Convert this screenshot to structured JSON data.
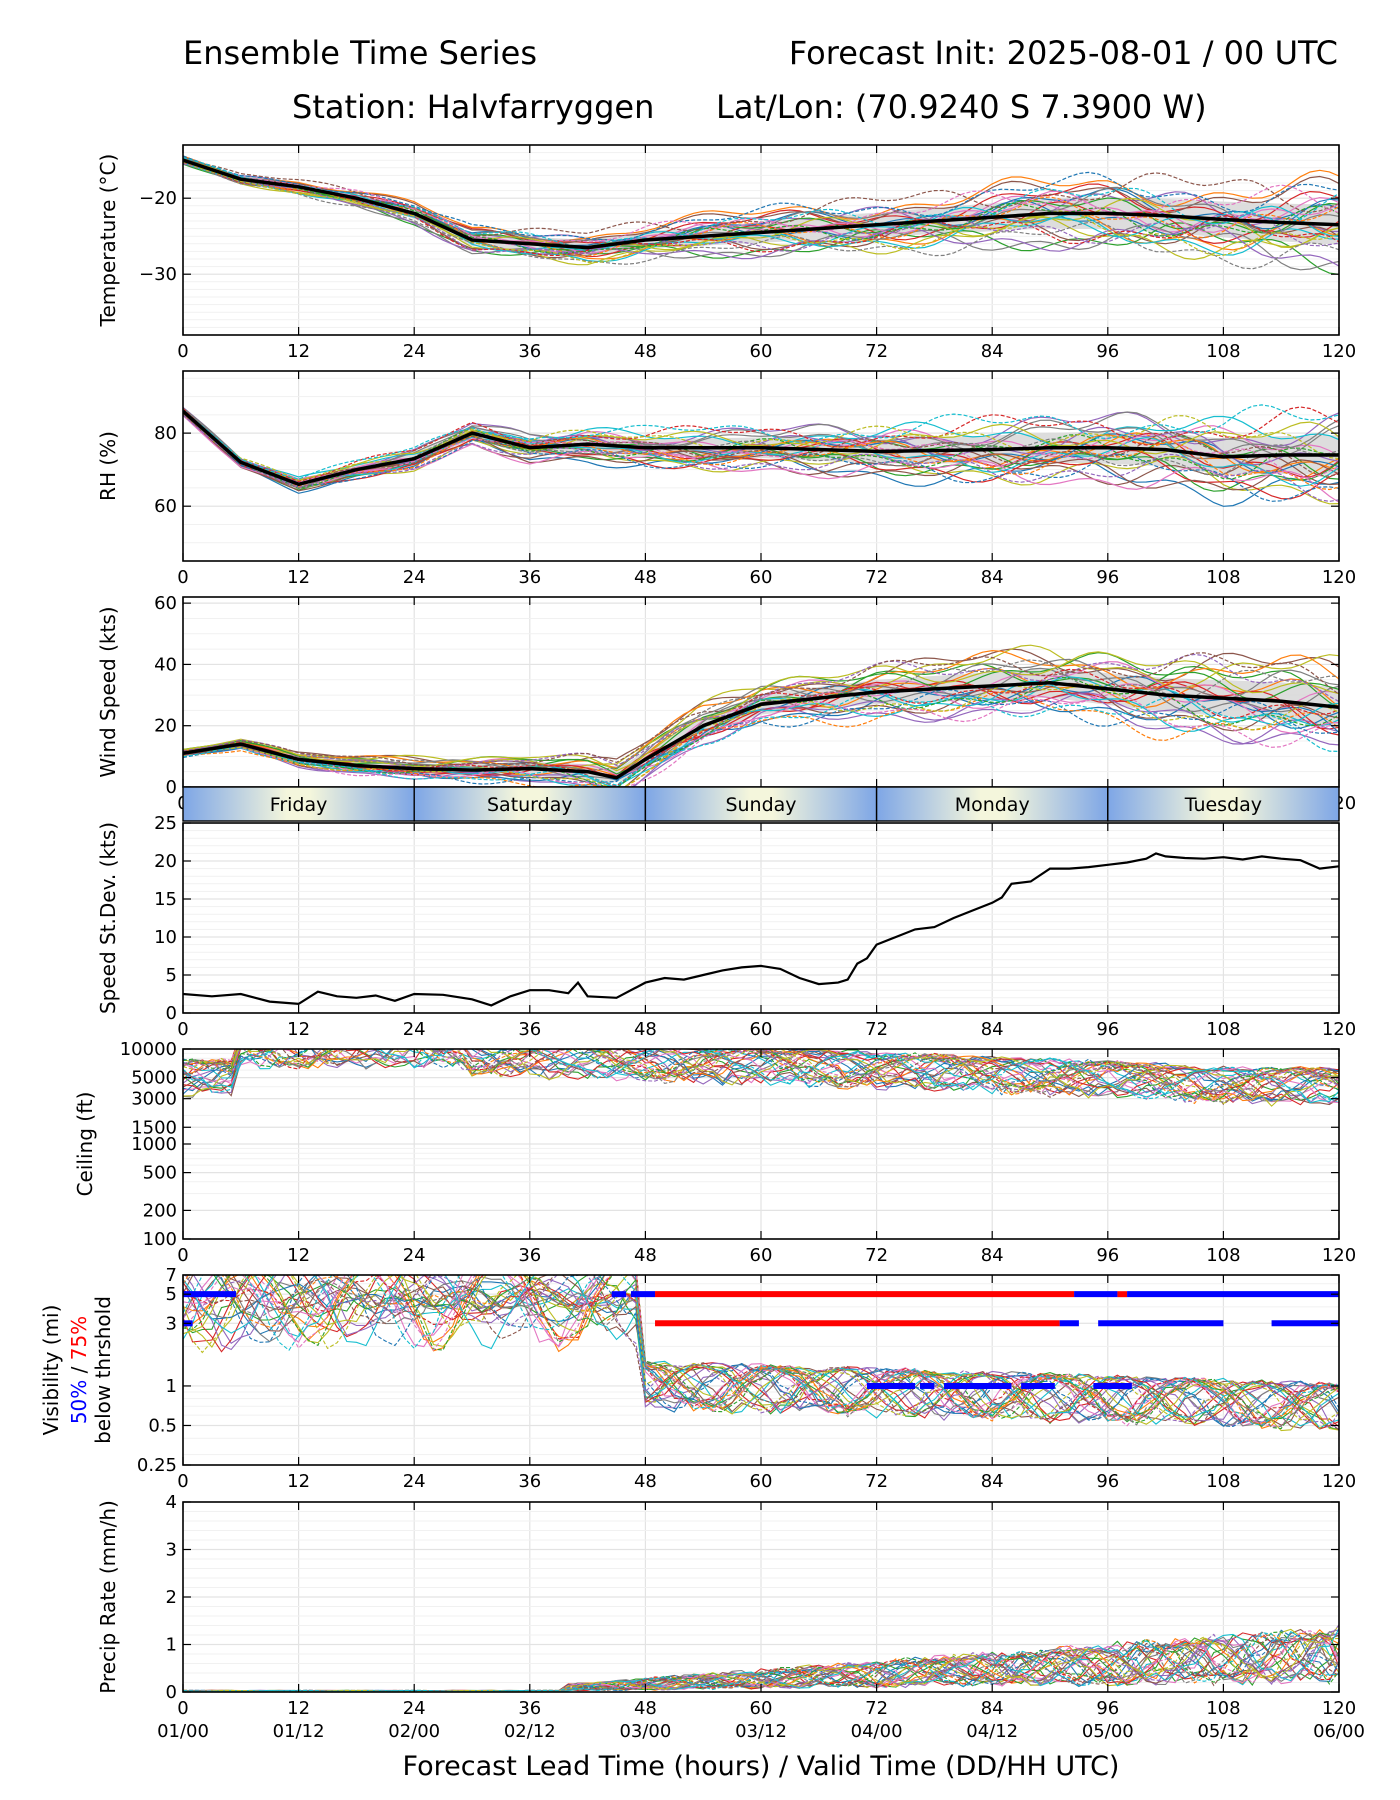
{
  "header": {
    "title_left": "Ensemble Time Series",
    "title_right": "Forecast Init: 2025-08-01 / 00 UTC",
    "station": "Station: Halvfarryggen",
    "latlon": "Lat/Lon: (70.9240 S 7.3900 W)"
  },
  "xaxis": {
    "ticks": [
      0,
      12,
      24,
      36,
      48,
      60,
      72,
      84,
      96,
      108,
      120
    ],
    "valid_times": [
      "01/00",
      "01/12",
      "02/00",
      "02/12",
      "03/00",
      "03/12",
      "04/00",
      "04/12",
      "05/00",
      "05/12",
      "06/00"
    ],
    "label": "Forecast Lead Time (hours) / Valid Time (DD/HH UTC)"
  },
  "days": [
    "Friday",
    "Saturday",
    "Sunday",
    "Monday",
    "Tuesday"
  ],
  "visibility_label": {
    "line1": "Visibility (mi)",
    "pct50": "50%",
    "sep": " / ",
    "pct75": "75%",
    "line3": "below thrshold"
  },
  "colors": {
    "pct50": "#0000ff",
    "pct75": "#ff0000",
    "mean": "#000000",
    "spread": "#d9d9d9",
    "grid": "#e6e6e6"
  },
  "chart_data": [
    {
      "type": "line",
      "ylabel": "Temperature (°C)",
      "ylim": [
        -38,
        -13
      ],
      "yticks": [
        -20,
        -30
      ],
      "ensemble_mean": {
        "x": [
          0,
          6,
          12,
          18,
          24,
          30,
          36,
          42,
          48,
          54,
          60,
          66,
          72,
          78,
          84,
          90,
          96,
          102,
          108,
          114,
          120
        ],
        "y": [
          -15,
          -17.5,
          -18.5,
          -20,
          -22,
          -25.5,
          -26,
          -26.5,
          -25.5,
          -25,
          -24.5,
          -24,
          -23.5,
          -23,
          -22.5,
          -22,
          -22,
          -22.3,
          -22.8,
          -23.2,
          -23.5
        ]
      }
    },
    {
      "type": "line",
      "ylabel": "RH (%)",
      "ylim": [
        45,
        97
      ],
      "yticks": [
        60,
        80
      ],
      "ensemble_mean": {
        "x": [
          0,
          6,
          12,
          18,
          24,
          30,
          36,
          42,
          48,
          60,
          72,
          84,
          90,
          96,
          102,
          108,
          114,
          120
        ],
        "y": [
          86,
          72,
          66,
          70,
          73,
          80,
          76,
          77,
          76,
          76,
          75,
          75.5,
          76,
          76,
          75.5,
          73.5,
          74,
          74
        ]
      }
    },
    {
      "type": "line",
      "ylabel": "Wind Speed (kts)",
      "ylim": [
        0,
        62
      ],
      "yticks": [
        0,
        20,
        40,
        60
      ],
      "ensemble_mean": {
        "x": [
          0,
          6,
          12,
          18,
          24,
          30,
          36,
          42,
          45,
          48,
          54,
          60,
          66,
          72,
          78,
          84,
          90,
          96,
          102,
          108,
          114,
          120
        ],
        "y": [
          11,
          14,
          9,
          7,
          6,
          5.5,
          6,
          5,
          3,
          9,
          20,
          27,
          29,
          31,
          32,
          33,
          34,
          32,
          30,
          29,
          28,
          26
        ]
      }
    },
    {
      "type": "line",
      "ylabel": "Speed St.Dev. (kts)",
      "ylim": [
        0,
        25
      ],
      "yticks": [
        0,
        5,
        10,
        15,
        20,
        25
      ],
      "series": [
        {
          "x": [
            0,
            3,
            6,
            9,
            12,
            14,
            16,
            18,
            20,
            22,
            24,
            27,
            30,
            32,
            34,
            36,
            38,
            40,
            41,
            42,
            45,
            48,
            50,
            52,
            54,
            56,
            58,
            60,
            62,
            64,
            66,
            68,
            69,
            70,
            71,
            72,
            74,
            76,
            78,
            80,
            82,
            84,
            85,
            86,
            88,
            90,
            92,
            94,
            96,
            98,
            100,
            101,
            102,
            104,
            106,
            108,
            110,
            112,
            114,
            116,
            118,
            120
          ],
          "y": [
            2.5,
            2.2,
            2.5,
            1.5,
            1.2,
            2.8,
            2.2,
            2,
            2.3,
            1.6,
            2.5,
            2.4,
            1.8,
            1,
            2.2,
            3,
            3,
            2.6,
            4,
            2.2,
            2,
            4,
            4.6,
            4.4,
            5,
            5.6,
            6,
            6.2,
            5.8,
            4.6,
            3.8,
            4,
            4.4,
            6.5,
            7.2,
            9,
            10,
            11,
            11.3,
            12.5,
            13.5,
            14.5,
            15.2,
            17,
            17.3,
            19,
            19,
            19.2,
            19.5,
            19.8,
            20.3,
            21,
            20.6,
            20.4,
            20.3,
            20.5,
            20.2,
            20.6,
            20.3,
            20.1,
            19,
            19.3
          ]
        }
      ]
    },
    {
      "type": "line",
      "ylabel": "Ceiling (ft)",
      "yscale": "log",
      "ylim": [
        100,
        10000
      ],
      "yticks": [
        100,
        200,
        500,
        1000,
        1500,
        3000,
        5000,
        10000
      ],
      "ytick_labels": [
        "100",
        "200",
        "500",
        "1000",
        "1500",
        "3000",
        "5000",
        "10000"
      ]
    },
    {
      "type": "line",
      "yscale": "log",
      "ylim": [
        0.25,
        7
      ],
      "yticks": [
        0.25,
        0.5,
        1,
        3,
        5,
        7
      ],
      "ytick_labels": [
        "0.25",
        "0.5",
        "1",
        "3",
        "5",
        "7"
      ],
      "threshold_bars": [
        {
          "level": 5,
          "color": "#0000ff",
          "from": 0,
          "to": 5.5
        },
        {
          "level": 3,
          "color": "#0000ff",
          "from": 0,
          "to": 1
        },
        {
          "level": 5,
          "color": "#0000ff",
          "from": 44.5,
          "to": 46
        },
        {
          "level": 5,
          "color": "#0000ff",
          "from": 46.5,
          "to": 49
        },
        {
          "level": 5,
          "color": "#ff0000",
          "from": 49,
          "to": 92.5
        },
        {
          "level": 5,
          "color": "#0000ff",
          "from": 92.5,
          "to": 97
        },
        {
          "level": 5,
          "color": "#ff0000",
          "from": 97,
          "to": 98
        },
        {
          "level": 5,
          "color": "#0000ff",
          "from": 98,
          "to": 120
        },
        {
          "level": 3,
          "color": "#ff0000",
          "from": 49,
          "to": 91
        },
        {
          "level": 3,
          "color": "#0000ff",
          "from": 91,
          "to": 93
        },
        {
          "level": 3,
          "color": "#0000ff",
          "from": 95,
          "to": 108
        },
        {
          "level": 3,
          "color": "#0000ff",
          "from": 113,
          "to": 120
        },
        {
          "level": 1,
          "color": "#0000ff",
          "from": 71,
          "to": 76
        },
        {
          "level": 1,
          "color": "#0000ff",
          "from": 76.5,
          "to": 78
        },
        {
          "level": 1,
          "color": "#0000ff",
          "from": 79,
          "to": 86
        },
        {
          "level": 1,
          "color": "#0000ff",
          "from": 87,
          "to": 90.5
        },
        {
          "level": 1,
          "color": "#0000ff",
          "from": 94.5,
          "to": 98.5
        }
      ]
    },
    {
      "type": "line",
      "ylabel": "Precip Rate (mm/h)",
      "ylim": [
        0,
        4
      ],
      "yticks": [
        0,
        1,
        2,
        3,
        4
      ]
    }
  ]
}
